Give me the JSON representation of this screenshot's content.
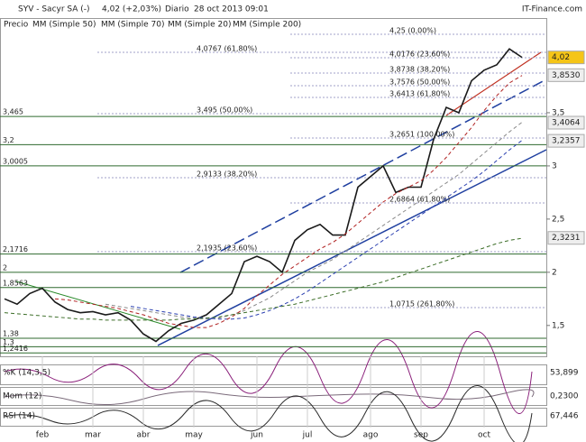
{
  "chart_data": {
    "type": "line",
    "title": "SYV - Sacyr SA (-)",
    "subtitle": "4,02 (+2,03%)",
    "period": "Diario",
    "date": "28 oct 2013 09:01",
    "source": "IT-Finance.com",
    "categories": [
      null,
      null,
      null,
      "feb",
      null,
      null,
      null,
      "mar",
      null,
      null,
      null,
      "abr",
      null,
      null,
      null,
      "may",
      null,
      null,
      null,
      null,
      "jun",
      null,
      null,
      null,
      "jul",
      null,
      null,
      null,
      null,
      "ago",
      null,
      null,
      null,
      "sep",
      null,
      null,
      null,
      null,
      "oct",
      null,
      null,
      null
    ],
    "series": [
      {
        "name": "Precio",
        "color": "#1a1a1a",
        "values": [
          1.75,
          1.7,
          1.8,
          1.85,
          1.72,
          1.65,
          1.62,
          1.63,
          1.6,
          1.62,
          1.55,
          1.42,
          1.35,
          1.45,
          1.52,
          1.55,
          1.6,
          1.7,
          1.8,
          2.1,
          2.15,
          2.1,
          2.0,
          2.3,
          2.4,
          2.45,
          2.35,
          2.35,
          2.8,
          2.9,
          3.0,
          2.75,
          2.8,
          2.8,
          3.25,
          3.55,
          3.5,
          3.8,
          3.9,
          3.95,
          4.1,
          4.02
        ]
      },
      {
        "name": "MM (Simple 50)",
        "color": "#8a8a8a",
        "values": [
          null,
          null,
          null,
          null,
          null,
          null,
          null,
          null,
          1.7,
          1.68,
          1.66,
          1.64,
          1.62,
          1.6,
          1.58,
          1.57,
          1.56,
          1.57,
          1.6,
          1.64,
          1.7,
          1.76,
          1.84,
          1.92,
          2.0,
          2.06,
          2.12,
          2.2,
          2.28,
          2.36,
          2.44,
          2.52,
          2.6,
          2.68,
          2.76,
          2.84,
          2.92,
          3.02,
          3.12,
          3.22,
          3.32,
          3.41
        ]
      },
      {
        "name": "MM (Simple 70)",
        "color": "#2a3fb0",
        "values": [
          null,
          null,
          null,
          null,
          null,
          null,
          null,
          null,
          null,
          null,
          1.68,
          1.66,
          1.64,
          1.62,
          1.6,
          1.58,
          1.57,
          1.56,
          1.56,
          1.57,
          1.6,
          1.64,
          1.69,
          1.75,
          1.82,
          1.9,
          1.98,
          2.06,
          2.14,
          2.22,
          2.3,
          2.38,
          2.46,
          2.54,
          2.62,
          2.7,
          2.78,
          2.86,
          2.95,
          3.05,
          3.15,
          3.24
        ]
      },
      {
        "name": "MM (Simple 20)",
        "color": "#b02020",
        "values": [
          null,
          null,
          null,
          null,
          1.75,
          1.74,
          1.72,
          1.7,
          1.68,
          1.66,
          1.63,
          1.6,
          1.56,
          1.52,
          1.5,
          1.48,
          1.48,
          1.52,
          1.58,
          1.66,
          1.78,
          1.88,
          1.98,
          2.06,
          2.14,
          2.22,
          2.28,
          2.36,
          2.46,
          2.56,
          2.66,
          2.74,
          2.8,
          2.86,
          2.96,
          3.08,
          3.22,
          3.36,
          3.52,
          3.66,
          3.78,
          3.85
        ]
      },
      {
        "name": "MM (Simple 200)",
        "color": "#3c6e28",
        "values": [
          1.62,
          1.61,
          1.6,
          1.59,
          1.58,
          1.57,
          1.56,
          1.56,
          1.55,
          1.55,
          1.55,
          1.55,
          1.55,
          1.55,
          1.56,
          1.56,
          1.57,
          1.58,
          1.6,
          1.62,
          1.64,
          1.66,
          1.68,
          1.7,
          1.73,
          1.76,
          1.79,
          1.82,
          1.85,
          1.88,
          1.91,
          1.95,
          1.99,
          2.03,
          2.07,
          2.11,
          2.15,
          2.19,
          2.23,
          2.27,
          2.3,
          2.32
        ]
      }
    ],
    "ylim": [
      1.21,
      4.39
    ],
    "yticks": [
      {
        "value": 3.5,
        "label": "3,5"
      },
      3,
      {
        "value": 2.5,
        "label": "2,5"
      },
      2,
      {
        "value": 1.5,
        "label": "1,5"
      }
    ],
    "levels": [
      {
        "value": 3.465,
        "label": "3,465"
      },
      {
        "value": 3.2,
        "label": "3,2"
      },
      {
        "value": 3.0005,
        "label": "3,0005"
      },
      {
        "value": 2.1716,
        "label": "2,1716"
      },
      2,
      {
        "value": 1.8563,
        "label": "1,8563"
      },
      {
        "value": 1.38,
        "label": "1,38"
      },
      {
        "value": 1.3,
        "label": "1,3"
      },
      {
        "value": 1.2416,
        "label": "1,2416"
      }
    ],
    "price_labels": [
      {
        "value": 4.02,
        "label": "4,02"
      },
      {
        "value": 3.853,
        "label": "3,8530"
      },
      {
        "value": 3.4064,
        "label": "3,4064"
      },
      {
        "value": 3.2357,
        "label": "3,2357"
      },
      {
        "value": 2.3231,
        "label": "2,3231"
      }
    ],
    "fibonacci": [
      "4,25 (0,00%)",
      "4,0767 (61,80%)",
      "4,0176 (23,60%)",
      "3,8738 (38,20%)",
      "3,7576 (50,00%)",
      "3,6413 (61,80%)",
      "3,495 (50,00%)",
      "3,2651 (100,00%)",
      "2,9133 (38,20%)",
      "2,6864 (61,80%)",
      "2,1935 (23,60%)",
      "1,0715 (261,80%)"
    ],
    "indicators": [
      {
        "name": "%K (14,3,5)",
        "value": "53,899"
      },
      {
        "name": "Mom (12)",
        "value": "0,2300"
      },
      {
        "name": "RSI (14)",
        "value": "67,446"
      }
    ]
  }
}
